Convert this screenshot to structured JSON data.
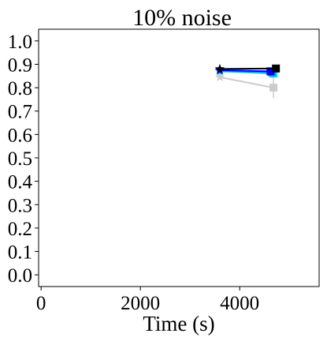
{
  "chart_data": {
    "type": "line",
    "title": "10% noise",
    "xlabel": "Time (s)",
    "ylabel": "",
    "xlim": [
      -50,
      5600
    ],
    "ylim": [
      -0.05,
      1.05
    ],
    "xticks": [
      0,
      2000,
      4000
    ],
    "xtick_labels": [
      "0",
      "2000",
      "4000"
    ],
    "yticks": [
      0.0,
      0.1,
      0.2,
      0.3,
      0.4,
      0.5,
      0.6,
      0.7,
      0.8,
      0.9,
      1.0
    ],
    "ytick_labels": [
      "0.0",
      "0.1",
      "0.2",
      "0.3",
      "0.4",
      "0.5",
      "0.6",
      "0.7",
      "0.8",
      "0.9",
      "1.0"
    ],
    "grid": false,
    "series": [
      {
        "color": "#cccccc",
        "x": [
          3600,
          4680
        ],
        "y": [
          0.845,
          0.8
        ],
        "err": [
          0,
          0.045
        ],
        "markers": [
          "star",
          "square"
        ]
      },
      {
        "color": "#00e5ff",
        "x": [
          3600,
          4680
        ],
        "y": [
          0.87,
          0.86
        ],
        "err": [
          0,
          0.012
        ],
        "markers": [
          "star",
          "square"
        ]
      },
      {
        "color": "#1e90ff",
        "x": [
          3600,
          4650
        ],
        "y": [
          0.872,
          0.865
        ],
        "err": [
          0,
          0.008
        ],
        "markers": [
          "star",
          "square"
        ]
      },
      {
        "color": "#0000ff",
        "x": [
          3600,
          4620
        ],
        "y": [
          0.875,
          0.87
        ],
        "err": [
          0,
          0.005
        ],
        "markers": [
          "star",
          "square"
        ]
      },
      {
        "color": "#000000",
        "x": [
          3600,
          4730
        ],
        "y": [
          0.88,
          0.882
        ],
        "err": [
          0,
          0.004
        ],
        "markers": [
          "star",
          "square"
        ]
      }
    ]
  }
}
